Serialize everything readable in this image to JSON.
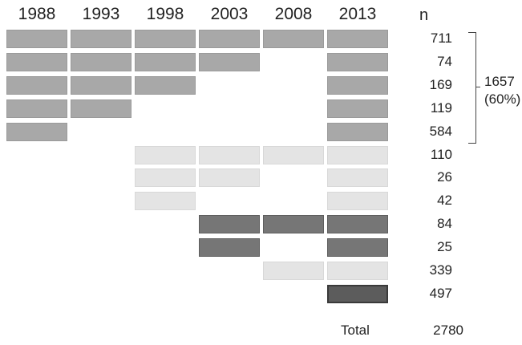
{
  "years": [
    "1988",
    "1993",
    "1998",
    "2003",
    "2008",
    "2013"
  ],
  "n_header": "n",
  "shades": {
    "medium": {
      "fill": "#a8a8a8",
      "border": "#9a9a9a"
    },
    "light": {
      "fill": "#e4e4e4",
      "border": "#d8d8d8"
    },
    "dark": {
      "fill": "#767676",
      "border": "#5e5e5e"
    },
    "darkest": {
      "fill": "#5c5c5c",
      "border": "#3a3a3a"
    }
  },
  "rows": [
    {
      "n": "711",
      "shade": "medium",
      "present": [
        true,
        true,
        true,
        true,
        true,
        true
      ]
    },
    {
      "n": "74",
      "shade": "medium",
      "present": [
        true,
        true,
        true,
        true,
        false,
        true
      ]
    },
    {
      "n": "169",
      "shade": "medium",
      "present": [
        true,
        true,
        true,
        false,
        false,
        true
      ]
    },
    {
      "n": "119",
      "shade": "medium",
      "present": [
        true,
        true,
        false,
        false,
        false,
        true
      ]
    },
    {
      "n": "584",
      "shade": "medium",
      "present": [
        true,
        false,
        false,
        false,
        false,
        true
      ]
    },
    {
      "n": "110",
      "shade": "light",
      "present": [
        false,
        false,
        true,
        true,
        true,
        true
      ]
    },
    {
      "n": "26",
      "shade": "light",
      "present": [
        false,
        false,
        true,
        true,
        false,
        true
      ]
    },
    {
      "n": "42",
      "shade": "light",
      "present": [
        false,
        false,
        true,
        false,
        false,
        true
      ]
    },
    {
      "n": "84",
      "shade": "dark",
      "present": [
        false,
        false,
        false,
        true,
        true,
        true
      ]
    },
    {
      "n": "25",
      "shade": "dark",
      "present": [
        false,
        false,
        false,
        true,
        false,
        true
      ]
    },
    {
      "n": "339",
      "shade": "light",
      "present": [
        false,
        false,
        false,
        false,
        true,
        true
      ]
    },
    {
      "n": "497",
      "shade": "darkest",
      "present": [
        false,
        false,
        false,
        false,
        false,
        true
      ]
    }
  ],
  "group": {
    "total": "1657",
    "percent": "(60%)"
  },
  "total": {
    "label": "Total",
    "value": "2780"
  }
}
